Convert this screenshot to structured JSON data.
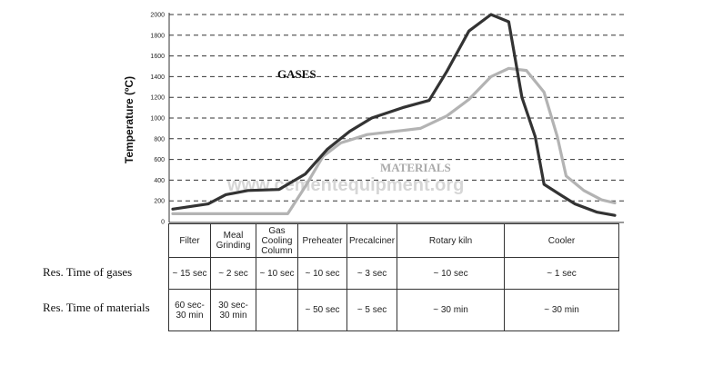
{
  "chart_data": {
    "type": "line",
    "ylabel": "Temperature (ºC)",
    "ylim": [
      0,
      2000
    ],
    "yticks": [
      0,
      200,
      400,
      600,
      800,
      1000,
      1200,
      1400,
      1600,
      1800,
      2000
    ],
    "grid": "horizontal dashed",
    "series": [
      {
        "name": "GASES",
        "color": "#333333",
        "points": [
          [
            0.0,
            120
          ],
          [
            0.08,
            170
          ],
          [
            0.12,
            260
          ],
          [
            0.17,
            300
          ],
          [
            0.24,
            310
          ],
          [
            0.3,
            460
          ],
          [
            0.35,
            700
          ],
          [
            0.4,
            870
          ],
          [
            0.45,
            1000
          ],
          [
            0.52,
            1100
          ],
          [
            0.58,
            1170
          ],
          [
            0.62,
            1450
          ],
          [
            0.67,
            1840
          ],
          [
            0.72,
            2000
          ],
          [
            0.76,
            1930
          ],
          [
            0.79,
            1200
          ],
          [
            0.82,
            820
          ],
          [
            0.84,
            360
          ],
          [
            0.88,
            250
          ],
          [
            0.91,
            170
          ],
          [
            0.96,
            90
          ],
          [
            1.0,
            60
          ]
        ]
      },
      {
        "name": "MATERIALS",
        "color": "#b3b3b3",
        "points": [
          [
            0.0,
            75
          ],
          [
            0.12,
            75
          ],
          [
            0.22,
            75
          ],
          [
            0.26,
            75
          ],
          [
            0.3,
            340
          ],
          [
            0.34,
            630
          ],
          [
            0.38,
            760
          ],
          [
            0.44,
            840
          ],
          [
            0.52,
            880
          ],
          [
            0.56,
            900
          ],
          [
            0.62,
            1020
          ],
          [
            0.67,
            1180
          ],
          [
            0.72,
            1400
          ],
          [
            0.76,
            1480
          ],
          [
            0.8,
            1460
          ],
          [
            0.84,
            1250
          ],
          [
            0.87,
            820
          ],
          [
            0.89,
            440
          ],
          [
            0.93,
            300
          ],
          [
            0.97,
            210
          ],
          [
            1.0,
            180
          ]
        ]
      }
    ],
    "annotations": [
      "GASES",
      "MATERIALS"
    ]
  },
  "watermark": "www.cementequipment.org",
  "table": {
    "row_labels": [
      "Res. Time of gases",
      "Res. Time of materials"
    ],
    "stages": [
      {
        "name": "Filter",
        "gases": "~ 15 sec",
        "materials": "60 sec-\n30 min"
      },
      {
        "name": "Meal\nGrinding",
        "gases": "~ 2 sec",
        "materials": "30 sec-\n30 min"
      },
      {
        "name": "Gas\nCooling\nColumn",
        "gases": "~ 10 sec",
        "materials": ""
      },
      {
        "name": "Preheater",
        "gases": "~ 10 sec",
        "materials": "~ 50 sec"
      },
      {
        "name": "Precalciner",
        "gases": "~ 3 sec",
        "materials": "~ 5 sec"
      },
      {
        "name": "Rotary kiln",
        "gases": "~ 10 sec",
        "materials": "~ 30 min"
      },
      {
        "name": "Cooler",
        "gases": "~ 1 sec",
        "materials": "~ 30 min"
      }
    ]
  }
}
